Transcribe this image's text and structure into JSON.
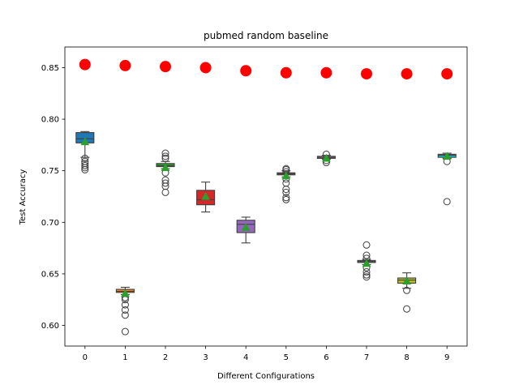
{
  "chart_data": {
    "type": "box",
    "title": "pubmed random baseline",
    "xlabel": "Different Configurations",
    "ylabel": "Test Accuracy",
    "categories": [
      "0",
      "1",
      "2",
      "3",
      "4",
      "5",
      "6",
      "7",
      "8",
      "9"
    ],
    "ylim": [
      0.58,
      0.87
    ],
    "yticks": [
      "0.60",
      "0.65",
      "0.70",
      "0.75",
      "0.80",
      "0.85"
    ],
    "ytick_values": [
      0.6,
      0.65,
      0.7,
      0.75,
      0.8,
      0.85
    ],
    "boxes": [
      {
        "color": "#1f77b4",
        "whislo": 0.763,
        "q1": 0.777,
        "med": 0.781,
        "q3": 0.787,
        "whishi": 0.788,
        "mean": 0.778,
        "fliers": [
          0.762,
          0.759,
          0.757,
          0.755,
          0.753,
          0.751
        ]
      },
      {
        "color": "#ff7f0e",
        "whislo": 0.63,
        "q1": 0.632,
        "med": 0.633,
        "q3": 0.635,
        "whishi": 0.637,
        "mean": 0.631,
        "fliers": [
          0.627,
          0.625,
          0.62,
          0.615,
          0.61,
          0.594
        ]
      },
      {
        "color": "#2ca02c",
        "whislo": 0.752,
        "q1": 0.754,
        "med": 0.755,
        "q3": 0.757,
        "whishi": 0.759,
        "mean": 0.753,
        "fliers": [
          0.767,
          0.764,
          0.762,
          0.748,
          0.741,
          0.738,
          0.735,
          0.729
        ]
      },
      {
        "color": "#d62728",
        "whislo": 0.71,
        "q1": 0.717,
        "med": 0.722,
        "q3": 0.731,
        "whishi": 0.739,
        "mean": 0.725,
        "fliers": []
      },
      {
        "color": "#9467bd",
        "whislo": 0.68,
        "q1": 0.69,
        "med": 0.698,
        "q3": 0.702,
        "whishi": 0.705,
        "mean": 0.695,
        "fliers": []
      },
      {
        "color": "#8c564b",
        "whislo": 0.744,
        "q1": 0.746,
        "med": 0.747,
        "q3": 0.748,
        "whishi": 0.75,
        "mean": 0.745,
        "fliers": [
          0.752,
          0.751,
          0.749,
          0.742,
          0.738,
          0.732,
          0.729,
          0.724,
          0.722
        ]
      },
      {
        "color": "#e377c2",
        "whislo": 0.761,
        "q1": 0.762,
        "med": 0.763,
        "q3": 0.764,
        "whishi": 0.765,
        "mean": 0.762,
        "fliers": [
          0.766,
          0.76,
          0.758
        ]
      },
      {
        "color": "#7f7f7f",
        "whislo": 0.659,
        "q1": 0.661,
        "med": 0.662,
        "q3": 0.663,
        "whishi": 0.664,
        "mean": 0.66,
        "fliers": [
          0.678,
          0.668,
          0.665,
          0.656,
          0.652,
          0.649,
          0.647
        ]
      },
      {
        "color": "#bcbd22",
        "whislo": 0.636,
        "q1": 0.641,
        "med": 0.644,
        "q3": 0.646,
        "whishi": 0.651,
        "mean": 0.643,
        "fliers": [
          0.634,
          0.616
        ]
      },
      {
        "color": "#17becf",
        "whislo": 0.762,
        "q1": 0.763,
        "med": 0.765,
        "q3": 0.766,
        "whishi": 0.767,
        "mean": 0.764,
        "fliers": [
          0.759,
          0.72
        ]
      }
    ],
    "red_points": [
      0.853,
      0.852,
      0.851,
      0.85,
      0.847,
      0.845,
      0.845,
      0.844,
      0.844,
      0.844
    ],
    "mean_marker_color": "#2ca02c",
    "red_point_color": "#ff0000",
    "grid": false,
    "legend": "none"
  }
}
